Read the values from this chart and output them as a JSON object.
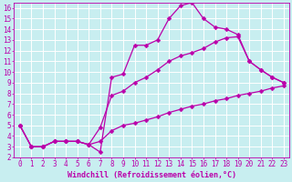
{
  "background_color": "#c8eef0",
  "grid_color": "#ffffff",
  "line_color": "#bb00aa",
  "markersize": 2.5,
  "linewidth": 0.9,
  "xlabel": "Windchill (Refroidissement éolien,°C)",
  "xlabel_fontsize": 6,
  "tick_fontsize": 5.5,
  "xlim": [
    -0.5,
    23.5
  ],
  "ylim": [
    2,
    16.5
  ],
  "xticks": [
    0,
    1,
    2,
    3,
    4,
    5,
    6,
    7,
    8,
    9,
    10,
    11,
    12,
    13,
    14,
    15,
    16,
    17,
    18,
    19,
    20,
    21,
    22,
    23
  ],
  "yticks": [
    2,
    3,
    4,
    5,
    6,
    7,
    8,
    9,
    10,
    11,
    12,
    13,
    14,
    15,
    16
  ],
  "curve1_x": [
    0,
    1,
    2,
    3,
    4,
    5,
    6,
    7,
    8,
    9,
    10,
    11,
    12,
    13,
    14,
    15,
    16,
    17,
    18,
    19,
    20,
    21,
    22,
    23
  ],
  "curve1_y": [
    5.0,
    3.0,
    3.0,
    3.5,
    3.5,
    3.5,
    3.2,
    2.5,
    9.5,
    9.8,
    12.5,
    12.5,
    13.0,
    15.0,
    16.2,
    16.5,
    15.0,
    14.2,
    14.0,
    13.5,
    11.0,
    10.2,
    9.5,
    9.0
  ],
  "curve2_x": [
    0,
    1,
    2,
    3,
    4,
    5,
    6,
    7,
    8,
    9,
    10,
    11,
    12,
    13,
    14,
    15,
    16,
    17,
    18,
    19,
    20,
    21,
    22,
    23
  ],
  "curve2_y": [
    5.0,
    3.0,
    3.0,
    3.5,
    3.5,
    3.5,
    3.2,
    4.8,
    7.8,
    8.2,
    9.0,
    9.5,
    10.2,
    11.0,
    11.5,
    11.8,
    12.2,
    12.8,
    13.2,
    13.3,
    11.0,
    10.2,
    9.5,
    9.0
  ],
  "curve3_x": [
    0,
    1,
    2,
    3,
    4,
    5,
    6,
    7,
    8,
    9,
    10,
    11,
    12,
    13,
    14,
    15,
    16,
    17,
    18,
    19,
    20,
    21,
    22,
    23
  ],
  "curve3_y": [
    5.0,
    3.0,
    3.0,
    3.5,
    3.5,
    3.5,
    3.2,
    3.5,
    4.5,
    5.0,
    5.2,
    5.5,
    5.8,
    6.2,
    6.5,
    6.8,
    7.0,
    7.3,
    7.5,
    7.8,
    8.0,
    8.2,
    8.5,
    8.7
  ]
}
